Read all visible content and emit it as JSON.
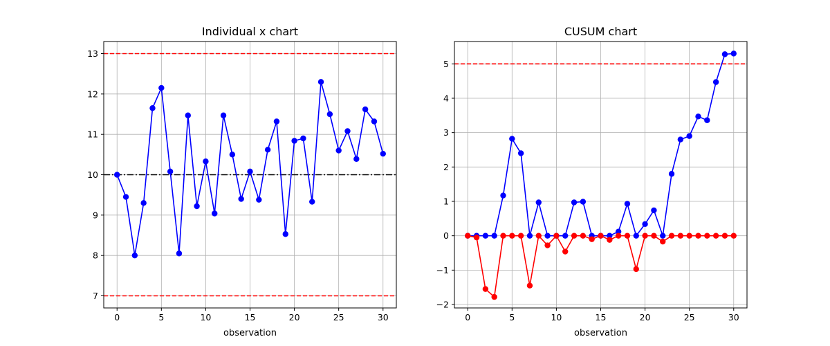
{
  "chart_data": [
    {
      "type": "line",
      "title": "Individual x chart",
      "xlabel": "observation",
      "ylabel": "",
      "xlim": [
        -1.5,
        31.5
      ],
      "ylim": [
        6.7,
        13.3
      ],
      "xticks": [
        0,
        5,
        10,
        15,
        20,
        25,
        30
      ],
      "yticks": [
        7,
        8,
        9,
        10,
        11,
        12,
        13
      ],
      "grid": true,
      "x": [
        0,
        1,
        2,
        3,
        4,
        5,
        6,
        7,
        8,
        9,
        10,
        11,
        12,
        13,
        14,
        15,
        16,
        17,
        18,
        19,
        20,
        21,
        22,
        23,
        24,
        25,
        26,
        27,
        28,
        29,
        30
      ],
      "series": [
        {
          "color": "#0000ff",
          "marker": "circle",
          "values": [
            10.0,
            9.45,
            8.0,
            9.3,
            11.65,
            12.15,
            10.08,
            8.05,
            11.47,
            9.22,
            10.33,
            9.04,
            11.47,
            10.5,
            9.4,
            10.08,
            9.38,
            10.62,
            11.32,
            8.53,
            10.84,
            10.9,
            9.33,
            12.3,
            11.5,
            10.6,
            11.08,
            10.39,
            11.62,
            11.32,
            10.52
          ]
        }
      ],
      "hlines": [
        {
          "y": 13,
          "color": "#ff0000",
          "style": "dashed"
        },
        {
          "y": 7,
          "color": "#ff0000",
          "style": "dashed"
        },
        {
          "y": 10,
          "color": "#000000",
          "style": "dashdot"
        }
      ]
    },
    {
      "type": "line",
      "title": "CUSUM chart",
      "xlabel": "observation",
      "ylabel": "",
      "xlim": [
        -1.5,
        31.5
      ],
      "ylim": [
        -2.1,
        5.65
      ],
      "xticks": [
        0,
        5,
        10,
        15,
        20,
        25,
        30
      ],
      "yticks": [
        -2,
        -1,
        0,
        1,
        2,
        3,
        4,
        5
      ],
      "grid": true,
      "x": [
        0,
        1,
        2,
        3,
        4,
        5,
        6,
        7,
        8,
        9,
        10,
        11,
        12,
        13,
        14,
        15,
        16,
        17,
        18,
        19,
        20,
        21,
        22,
        23,
        24,
        25,
        26,
        27,
        28,
        29,
        30
      ],
      "series": [
        {
          "color": "#0000ff",
          "marker": "circle",
          "values": [
            0,
            0,
            0,
            0,
            1.17,
            2.82,
            2.4,
            0,
            0.97,
            0,
            0,
            0,
            0.97,
            0.99,
            0,
            0,
            0,
            0.12,
            0.93,
            0,
            0.34,
            0.74,
            0,
            1.8,
            2.8,
            2.9,
            3.47,
            3.36,
            4.47,
            5.28,
            5.3
          ]
        },
        {
          "color": "#ff0000",
          "marker": "circle",
          "values": [
            0,
            -0.05,
            -1.55,
            -1.78,
            0,
            0,
            0,
            -1.45,
            0,
            -0.28,
            0,
            -0.46,
            0,
            0,
            -0.1,
            0,
            -0.12,
            0,
            0,
            -0.97,
            0,
            0,
            -0.17,
            0,
            0,
            0,
            0,
            0,
            0,
            0,
            0
          ]
        }
      ],
      "hlines": [
        {
          "y": 5,
          "color": "#ff0000",
          "style": "dashed"
        }
      ]
    }
  ]
}
